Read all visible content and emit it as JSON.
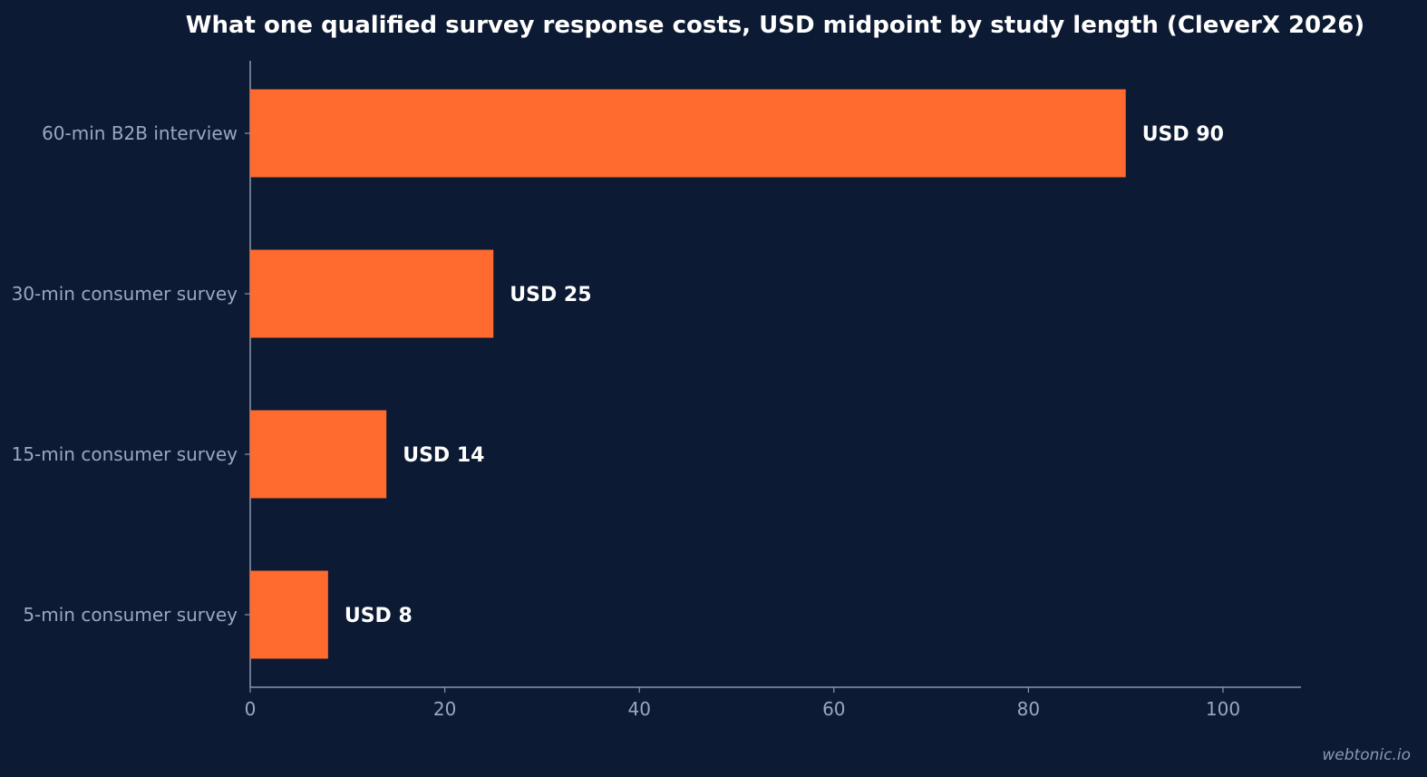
{
  "chart_data": {
    "type": "bar",
    "orientation": "horizontal",
    "title": "What one qualified survey response costs, USD midpoint by study length (CleverX 2026)",
    "xlabel": "",
    "ylabel": "",
    "categories": [
      "60-min B2B interview",
      "30-min consumer survey",
      "15-min consumer survey",
      "5-min consumer survey"
    ],
    "values": [
      90,
      25,
      14,
      8
    ],
    "data_labels": [
      "USD 90",
      "USD 25",
      "USD 14",
      "USD 8"
    ],
    "xlim": [
      0,
      108
    ],
    "x_ticks": [
      0,
      20,
      40,
      60,
      80,
      100
    ],
    "grid": false,
    "legend": "none",
    "bar_color": "#ff6b2f"
  },
  "colors": {
    "background": "#0c1a33",
    "bar": "#ff6b2f",
    "axis": "#8b97ab",
    "label_text": "#9aa8bf",
    "value_text": "#ffffff"
  },
  "watermark": "webtonic.io"
}
